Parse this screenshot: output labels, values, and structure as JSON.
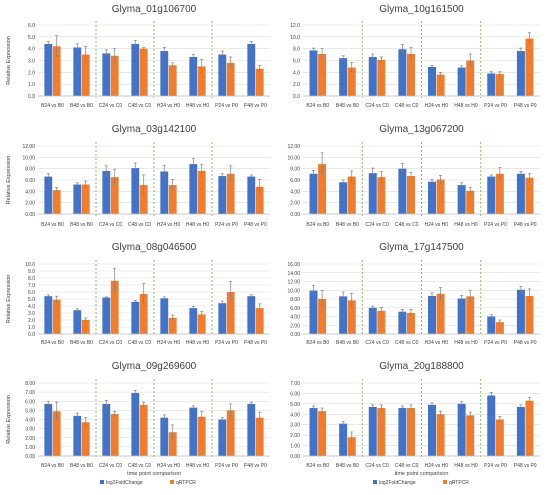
{
  "colors": {
    "rnaseq": "#4472C4",
    "qrtpcr": "#ED7D31",
    "error": "#7F7F7F",
    "grid": "#D9D9D9",
    "divider": "#70AD47",
    "text": "#404040"
  },
  "legend_labels": [
    "log2FoldChange",
    "qRTPCR"
  ],
  "chart_data": [
    {
      "type": "bar",
      "title": "Glyma_01g106700",
      "ylabel": "Relative Expression",
      "xlabel": "",
      "categories": [
        "B24 vs B0",
        "B48 vs B0",
        "C24 vs C0",
        "C48 vs C0",
        "H24 vs H0",
        "H48 vs H0",
        "P24 vs P0",
        "P48 vs P0"
      ],
      "ylim": [
        0,
        6
      ],
      "yticks": [
        "0.0",
        "1.0",
        "2.0",
        "3.0",
        "4.0",
        "5.0",
        "6.0"
      ],
      "grid": true,
      "series": [
        {
          "name": "log2FoldChange",
          "values": [
            4.4,
            4.1,
            3.6,
            4.4,
            3.8,
            3.3,
            3.5,
            4.4
          ],
          "errors": [
            0.2,
            0.3,
            0.3,
            0.3,
            0.3,
            0.2,
            0.3,
            0.2
          ]
        },
        {
          "name": "qRTPCR",
          "values": [
            4.2,
            3.5,
            3.4,
            4.0,
            2.6,
            2.5,
            2.8,
            2.3
          ],
          "errors": [
            0.9,
            0.7,
            0.6,
            0.1,
            0.2,
            0.6,
            0.5,
            0.3
          ]
        }
      ]
    },
    {
      "type": "bar",
      "title": "Glyma_10g161500",
      "ylabel": "",
      "xlabel": "",
      "categories": [
        "B24 vs B0",
        "B48 vs B0",
        "C24 vs C0",
        "C48 vs C0",
        "H24 vs H0",
        "H48 vs H0",
        "P24 vs P0",
        "P48 vs P0"
      ],
      "ylim": [
        0,
        12
      ],
      "yticks": [
        "0.0",
        "2.0",
        "4.0",
        "6.0",
        "8.0",
        "10.0",
        "12.0"
      ],
      "grid": true,
      "series": [
        {
          "name": "log2FoldChange",
          "values": [
            7.7,
            6.4,
            6.6,
            7.9,
            4.9,
            4.8,
            3.8,
            7.6
          ],
          "errors": [
            0.4,
            0.4,
            0.5,
            0.8,
            0.3,
            0.3,
            0.3,
            0.5
          ]
        },
        {
          "name": "qRTPCR",
          "values": [
            7.1,
            4.8,
            6.1,
            7.1,
            3.6,
            6.0,
            3.7,
            9.7
          ],
          "errors": [
            0.9,
            0.9,
            0.5,
            1.1,
            0.4,
            1.1,
            0.4,
            1.0
          ]
        }
      ]
    },
    {
      "type": "bar",
      "title": "Glyma_03g142100",
      "ylabel": "Relative Expression",
      "xlabel": "",
      "categories": [
        "B24 vs B0",
        "B48 vs B0",
        "C24 vs C0",
        "C48 vs C0",
        "H24 vs H0",
        "H48 vs H0",
        "P24 vs P0",
        "P48 vs P0"
      ],
      "ylim": [
        0,
        12
      ],
      "yticks": [
        "0.00",
        "2.00",
        "4.00",
        "6.00",
        "8.00",
        "10.00",
        "12.00"
      ],
      "grid": true,
      "series": [
        {
          "name": "log2FoldChange",
          "values": [
            6.6,
            5.2,
            7.6,
            8.1,
            7.5,
            8.8,
            6.7,
            6.6
          ],
          "errors": [
            0.5,
            0.3,
            0.9,
            0.9,
            1.1,
            1.0,
            0.4,
            0.3
          ]
        },
        {
          "name": "qRTPCR",
          "values": [
            4.2,
            5.2,
            6.5,
            5.1,
            5.1,
            7.6,
            7.1,
            4.8
          ],
          "errors": [
            0.5,
            0.6,
            1.4,
            1.8,
            1.0,
            1.2,
            1.4,
            1.3
          ]
        }
      ]
    },
    {
      "type": "bar",
      "title": "Glyma_13g067200",
      "ylabel": "",
      "xlabel": "",
      "categories": [
        "B24 vs B0",
        "B48 vs B0",
        "C24 vs C0",
        "C48 vs C0",
        "H24 vs H0",
        "H48 vs H0",
        "P24 vs P0",
        "P48 vs P0"
      ],
      "ylim": [
        0,
        12
      ],
      "yticks": [
        "0.00",
        "2.00",
        "4.00",
        "6.00",
        "8.00",
        "10.00",
        "12.00"
      ],
      "grid": true,
      "series": [
        {
          "name": "log2FoldChange",
          "values": [
            7.1,
            5.6,
            7.2,
            8.0,
            5.7,
            5.1,
            6.6,
            7.1
          ],
          "errors": [
            0.6,
            0.4,
            0.9,
            0.9,
            0.4,
            0.4,
            0.3,
            0.4
          ]
        },
        {
          "name": "qRTPCR",
          "values": [
            8.8,
            6.6,
            6.5,
            6.7,
            6.1,
            4.1,
            7.1,
            6.4
          ],
          "errors": [
            2.0,
            1.0,
            1.0,
            0.6,
            0.7,
            0.6,
            1.1,
            0.7
          ]
        }
      ]
    },
    {
      "type": "bar",
      "title": "Glyma_08g046500",
      "ylabel": "Relative Expression",
      "xlabel": "",
      "categories": [
        "B24 vs B0",
        "B48 vs B0",
        "C24 vs C0",
        "C48 vs C0",
        "H24 vs H0",
        "H48 vs H0",
        "P24 vs P0",
        "P48 vs P0"
      ],
      "ylim": [
        0,
        10
      ],
      "yticks": [
        "0.0",
        "1.0",
        "2.0",
        "3.0",
        "4.0",
        "5.0",
        "6.0",
        "7.0",
        "8.0",
        "9.0",
        "10.0"
      ],
      "grid": true,
      "series": [
        {
          "name": "log2FoldChange",
          "values": [
            5.4,
            3.4,
            5.2,
            4.6,
            5.1,
            3.7,
            4.4,
            5.4
          ],
          "errors": [
            0.2,
            0.2,
            0.1,
            0.2,
            0.2,
            0.2,
            0.3,
            0.2
          ]
        },
        {
          "name": "qRTPCR",
          "values": [
            4.9,
            2.0,
            7.6,
            5.7,
            2.3,
            2.8,
            6.0,
            3.7
          ],
          "errors": [
            0.5,
            0.3,
            1.8,
            1.5,
            0.4,
            0.4,
            1.5,
            0.6
          ]
        }
      ]
    },
    {
      "type": "bar",
      "title": "Glyma_17g147500",
      "ylabel": "",
      "xlabel": "",
      "categories": [
        "B24 vs B0",
        "B48 vs B0",
        "C24 vs C0",
        "C48 vs C0",
        "H24 vs H0",
        "H48 vs H0",
        "P24 vs P0",
        "P48 vs P0"
      ],
      "ylim": [
        0,
        16
      ],
      "yticks": [
        "0.00",
        "2.00",
        "4.00",
        "6.00",
        "8.00",
        "10.00",
        "12.00",
        "14.00",
        "16.00"
      ],
      "grid": true,
      "series": [
        {
          "name": "log2FoldChange",
          "values": [
            9.9,
            8.6,
            6.0,
            5.1,
            8.7,
            8.1,
            4.0,
            10.1
          ],
          "errors": [
            1.2,
            1.0,
            0.4,
            0.5,
            0.7,
            0.7,
            0.4,
            0.8
          ]
        },
        {
          "name": "qRTPCR",
          "values": [
            8.0,
            7.7,
            5.3,
            4.8,
            9.2,
            8.6,
            2.7,
            8.7
          ],
          "errors": [
            1.9,
            1.6,
            0.8,
            0.8,
            1.4,
            1.4,
            0.5,
            1.6
          ]
        }
      ]
    },
    {
      "type": "bar",
      "title": "Glyma_09g269600",
      "ylabel": "Relative Expression",
      "xlabel": "time point comparison",
      "categories": [
        "B24 vs B0",
        "B48 vs B0",
        "C24 vs C0",
        "C48 vs C0",
        "H24 vs H0",
        "H48 vs H0",
        "P24 vs P0",
        "P48 vs P0"
      ],
      "ylim": [
        0,
        8
      ],
      "yticks": [
        "0.00",
        "1.00",
        "2.00",
        "3.00",
        "4.00",
        "5.00",
        "6.00",
        "7.00",
        "8.00"
      ],
      "grid": true,
      "series": [
        {
          "name": "log2FoldChange",
          "values": [
            5.7,
            4.4,
            5.7,
            6.9,
            4.2,
            5.3,
            4.0,
            5.7
          ],
          "errors": [
            0.3,
            0.3,
            0.4,
            0.3,
            0.3,
            0.2,
            0.2,
            0.2
          ]
        },
        {
          "name": "qRTPCR",
          "values": [
            4.9,
            3.7,
            4.6,
            5.6,
            2.6,
            4.3,
            5.0,
            4.2
          ],
          "errors": [
            1.0,
            0.5,
            0.3,
            0.3,
            0.8,
            0.6,
            0.7,
            0.6
          ]
        }
      ]
    },
    {
      "type": "bar",
      "title": "Glyma_20g188800",
      "ylabel": "",
      "xlabel": "time point comparison",
      "categories": [
        "B24 vs B0",
        "B48 vs B0",
        "C24 vs C0",
        "C48 vs C0",
        "H24 vs H0",
        "H48 vs H0",
        "P24 vs P0",
        "P48 vs P0"
      ],
      "ylim": [
        0,
        7
      ],
      "yticks": [
        "0.00",
        "1.00",
        "2.00",
        "3.00",
        "4.00",
        "5.00",
        "6.00",
        "7.00"
      ],
      "grid": true,
      "series": [
        {
          "name": "log2FoldChange",
          "values": [
            4.6,
            3.1,
            4.7,
            4.6,
            4.9,
            5.0,
            5.8,
            4.7
          ],
          "errors": [
            0.2,
            0.2,
            0.2,
            0.2,
            0.2,
            0.2,
            0.3,
            0.2
          ]
        },
        {
          "name": "qRTPCR",
          "values": [
            4.3,
            1.8,
            4.6,
            4.6,
            4.0,
            3.9,
            3.5,
            5.3
          ],
          "errors": [
            0.3,
            0.5,
            0.3,
            0.3,
            0.3,
            0.3,
            0.3,
            0.3
          ]
        }
      ]
    }
  ]
}
